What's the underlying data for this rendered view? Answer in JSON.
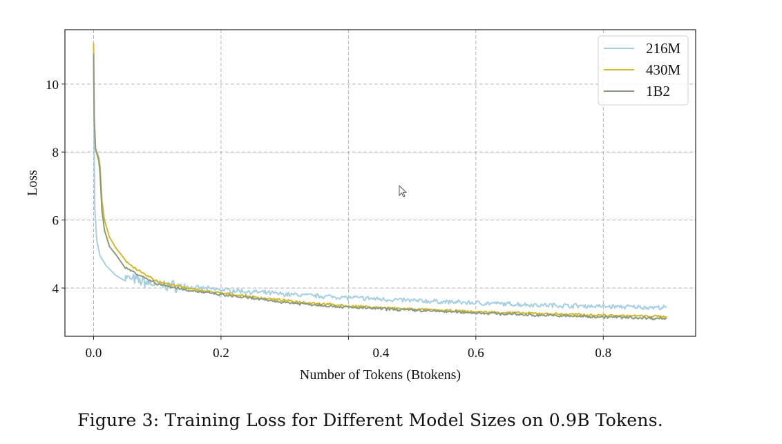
{
  "chart_data": {
    "type": "line",
    "title": "",
    "xlabel": "Number of Tokens (Btokens)",
    "ylabel": "Loss",
    "xlim": [
      -0.045,
      0.945
    ],
    "ylim": [
      2.58,
      11.6
    ],
    "grid": true,
    "legend_position": "top-right",
    "x_ticks": [
      {
        "value": 0.0,
        "label": "0.0"
      },
      {
        "value": 0.2,
        "label": "0.2"
      },
      {
        "value": 0.4,
        "label": "0.4"
      },
      {
        "value": 0.6,
        "label": "0.6"
      },
      {
        "value": 0.8,
        "label": "0.8"
      }
    ],
    "y_ticks": [
      {
        "value": 4,
        "label": "4"
      },
      {
        "value": 6,
        "label": "6"
      },
      {
        "value": 8,
        "label": "8"
      },
      {
        "value": 10,
        "label": "10"
      }
    ],
    "series": [
      {
        "name": "216M",
        "color": "#a6cfe2",
        "noise": 0.05,
        "points": [
          [
            0.0,
            10.8
          ],
          [
            0.001,
            8.0
          ],
          [
            0.002,
            6.3
          ],
          [
            0.005,
            5.4
          ],
          [
            0.01,
            4.95
          ],
          [
            0.02,
            4.65
          ],
          [
            0.035,
            4.45
          ],
          [
            0.05,
            4.3
          ],
          [
            0.075,
            4.2
          ],
          [
            0.1,
            4.1
          ],
          [
            0.15,
            4.02
          ],
          [
            0.2,
            3.95
          ],
          [
            0.3,
            3.82
          ],
          [
            0.4,
            3.72
          ],
          [
            0.5,
            3.63
          ],
          [
            0.6,
            3.56
          ],
          [
            0.7,
            3.5
          ],
          [
            0.8,
            3.46
          ],
          [
            0.9,
            3.42
          ]
        ]
      },
      {
        "name": "430M",
        "color": "#d4b82a",
        "noise": 0.025,
        "points": [
          [
            0.0,
            11.2
          ],
          [
            0.001,
            9.0
          ],
          [
            0.003,
            8.1
          ],
          [
            0.008,
            7.85
          ],
          [
            0.01,
            7.6
          ],
          [
            0.013,
            6.6
          ],
          [
            0.017,
            6.0
          ],
          [
            0.025,
            5.5
          ],
          [
            0.035,
            5.15
          ],
          [
            0.05,
            4.8
          ],
          [
            0.075,
            4.45
          ],
          [
            0.1,
            4.2
          ],
          [
            0.15,
            3.98
          ],
          [
            0.2,
            3.85
          ],
          [
            0.3,
            3.63
          ],
          [
            0.4,
            3.47
          ],
          [
            0.5,
            3.38
          ],
          [
            0.6,
            3.3
          ],
          [
            0.7,
            3.25
          ],
          [
            0.8,
            3.2
          ],
          [
            0.9,
            3.16
          ]
        ]
      },
      {
        "name": "1B2",
        "color": "#8a9a80",
        "noise": 0.03,
        "points": [
          [
            0.0,
            10.9
          ],
          [
            0.001,
            9.0
          ],
          [
            0.003,
            8.1
          ],
          [
            0.008,
            7.75
          ],
          [
            0.01,
            7.4
          ],
          [
            0.013,
            6.3
          ],
          [
            0.017,
            5.7
          ],
          [
            0.025,
            5.25
          ],
          [
            0.035,
            4.95
          ],
          [
            0.05,
            4.6
          ],
          [
            0.075,
            4.35
          ],
          [
            0.1,
            4.12
          ],
          [
            0.15,
            3.93
          ],
          [
            0.2,
            3.8
          ],
          [
            0.3,
            3.58
          ],
          [
            0.4,
            3.43
          ],
          [
            0.5,
            3.35
          ],
          [
            0.6,
            3.27
          ],
          [
            0.7,
            3.2
          ],
          [
            0.8,
            3.15
          ],
          [
            0.9,
            3.1
          ]
        ]
      }
    ]
  },
  "caption": "Figure 3: Training Loss for Different Model Sizes on 0.9B Tokens.",
  "cursor_icon": "mouse-pointer-icon"
}
